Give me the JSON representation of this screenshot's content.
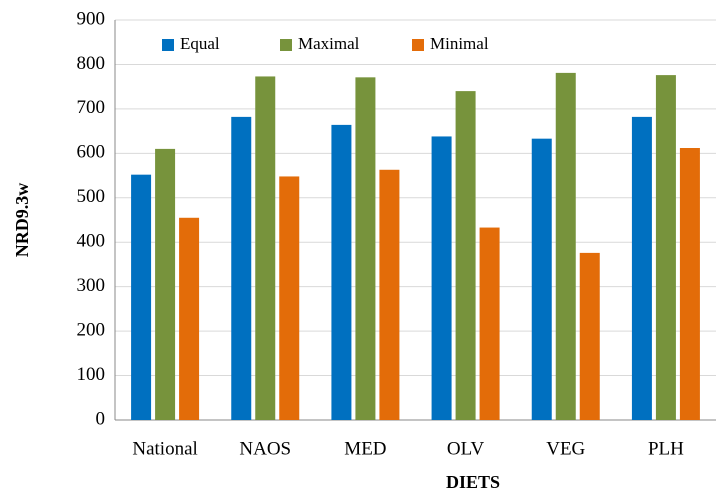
{
  "chart_data": {
    "type": "bar",
    "xlabel": "DIETS",
    "ylabel": "NRD9.3w",
    "categories": [
      "National",
      "NAOS",
      "MED",
      "OLV",
      "VEG",
      "PLH"
    ],
    "series": [
      {
        "name": "Equal",
        "color": "#0070c0",
        "values": [
          552,
          682,
          664,
          638,
          633,
          682
        ]
      },
      {
        "name": "Maximal",
        "color": "#77933c",
        "values": [
          610,
          773,
          771,
          740,
          781,
          776
        ]
      },
      {
        "name": "Minimal",
        "color": "#e36c09",
        "values": [
          455,
          548,
          563,
          433,
          376,
          612
        ]
      }
    ],
    "ylim": [
      0,
      900
    ],
    "yticks": [
      0,
      100,
      200,
      300,
      400,
      500,
      600,
      700,
      800,
      900
    ],
    "grid": true,
    "legend": "top"
  }
}
